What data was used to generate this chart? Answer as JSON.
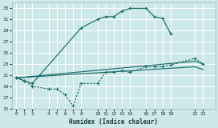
{
  "bg_color": "#cde8e8",
  "grid_color": "#ffffff",
  "line_color": "#1a6b6b",
  "xlabel": "Humidex (Indice chaleur)",
  "ylim": [
    15,
    34
  ],
  "xlim": [
    -0.5,
    24.5
  ],
  "yticks": [
    15,
    17,
    19,
    21,
    23,
    25,
    27,
    29,
    31,
    33
  ],
  "xticks": [
    0,
    1,
    2,
    4,
    5,
    6,
    7,
    8,
    10,
    11,
    12,
    13,
    14,
    16,
    17,
    18,
    19,
    22,
    23
  ],
  "line1_x": [
    0,
    1,
    2,
    8,
    10,
    11,
    12,
    13,
    14,
    16,
    17,
    18,
    19
  ],
  "line1_y": [
    20.5,
    20.0,
    19.5,
    29.5,
    31.0,
    31.5,
    31.5,
    32.5,
    33.0,
    33.0,
    31.5,
    31.2,
    28.5
  ],
  "line2_x": [
    0,
    1,
    2,
    4,
    5,
    6,
    7,
    8,
    10,
    11,
    12,
    13,
    14,
    16,
    17,
    18,
    19,
    22,
    23
  ],
  "line2_y": [
    20.5,
    20.0,
    19.0,
    18.5,
    18.5,
    17.5,
    15.5,
    19.5,
    19.5,
    21.5,
    21.5,
    21.8,
    21.5,
    22.5,
    22.5,
    22.5,
    22.8,
    24.0,
    23.0
  ],
  "line3_x": [
    0,
    22,
    23
  ],
  "line3_y": [
    20.5,
    23.5,
    23.0
  ],
  "line4_x": [
    0,
    22,
    23
  ],
  "line4_y": [
    20.5,
    22.5,
    22.0
  ]
}
